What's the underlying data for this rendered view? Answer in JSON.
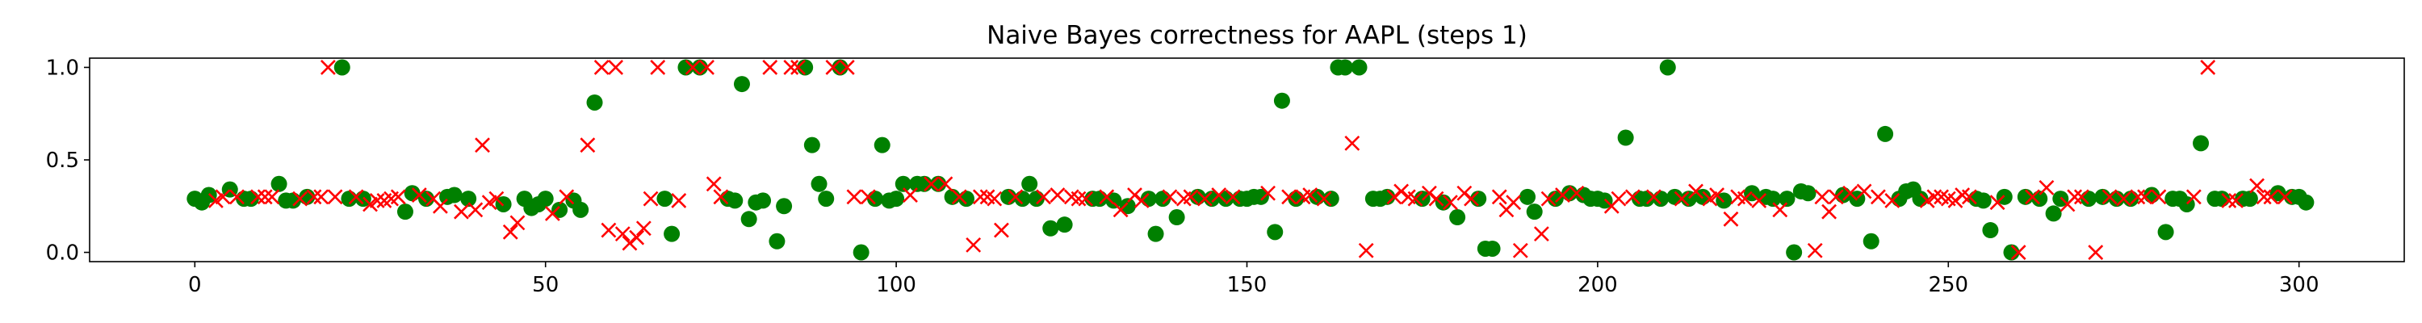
{
  "chart_data": {
    "type": "scatter",
    "title": "Naive Bayes correctness for AAPL (steps 1)",
    "xlabel": "",
    "ylabel": "",
    "xlim": [
      -15,
      315
    ],
    "ylim": [
      -0.05,
      1.05
    ],
    "xticks": [
      0,
      50,
      100,
      150,
      200,
      250,
      300
    ],
    "yticks": [
      0.0,
      0.5,
      1.0
    ],
    "ytick_labels": [
      "0.0",
      "0.5",
      "1.0"
    ],
    "grid": false,
    "legend": "none",
    "series": [
      {
        "marker": "circle",
        "color": "#008000",
        "points": [
          [
            0,
            0.29
          ],
          [
            1,
            0.27
          ],
          [
            2,
            0.31
          ],
          [
            5,
            0.34
          ],
          [
            7,
            0.29
          ],
          [
            8,
            0.29
          ],
          [
            12,
            0.37
          ],
          [
            13,
            0.28
          ],
          [
            14,
            0.28
          ],
          [
            16,
            0.3
          ],
          [
            21,
            1.0
          ],
          [
            22,
            0.29
          ],
          [
            24,
            0.29
          ],
          [
            30,
            0.22
          ],
          [
            31,
            0.32
          ],
          [
            33,
            0.29
          ],
          [
            36,
            0.3
          ],
          [
            37,
            0.31
          ],
          [
            39,
            0.29
          ],
          [
            44,
            0.26
          ],
          [
            47,
            0.29
          ],
          [
            48,
            0.24
          ],
          [
            49,
            0.26
          ],
          [
            50,
            0.29
          ],
          [
            52,
            0.23
          ],
          [
            54,
            0.28
          ],
          [
            55,
            0.23
          ],
          [
            57,
            0.81
          ],
          [
            67,
            0.29
          ],
          [
            68,
            0.1
          ],
          [
            70,
            1.0
          ],
          [
            72,
            1.0
          ],
          [
            76,
            0.29
          ],
          [
            77,
            0.28
          ],
          [
            78,
            0.91
          ],
          [
            79,
            0.18
          ],
          [
            80,
            0.27
          ],
          [
            81,
            0.28
          ],
          [
            83,
            0.06
          ],
          [
            84,
            0.25
          ],
          [
            87,
            1.0
          ],
          [
            88,
            0.58
          ],
          [
            89,
            0.37
          ],
          [
            90,
            0.29
          ],
          [
            92,
            1.0
          ],
          [
            95,
            0.0
          ],
          [
            97,
            0.29
          ],
          [
            98,
            0.58
          ],
          [
            99,
            0.28
          ],
          [
            100,
            0.29
          ],
          [
            101,
            0.37
          ],
          [
            103,
            0.37
          ],
          [
            104,
            0.37
          ],
          [
            106,
            0.37
          ],
          [
            108,
            0.3
          ],
          [
            110,
            0.29
          ],
          [
            116,
            0.3
          ],
          [
            118,
            0.29
          ],
          [
            119,
            0.37
          ],
          [
            120,
            0.29
          ],
          [
            122,
            0.13
          ],
          [
            124,
            0.15
          ],
          [
            128,
            0.29
          ],
          [
            129,
            0.29
          ],
          [
            131,
            0.28
          ],
          [
            133,
            0.25
          ],
          [
            136,
            0.29
          ],
          [
            137,
            0.1
          ],
          [
            138,
            0.29
          ],
          [
            140,
            0.19
          ],
          [
            143,
            0.3
          ],
          [
            145,
            0.29
          ],
          [
            147,
            0.29
          ],
          [
            149,
            0.29
          ],
          [
            150,
            0.29
          ],
          [
            151,
            0.3
          ],
          [
            152,
            0.3
          ],
          [
            154,
            0.11
          ],
          [
            155,
            0.82
          ],
          [
            157,
            0.29
          ],
          [
            160,
            0.3
          ],
          [
            162,
            0.29
          ],
          [
            163,
            1.0
          ],
          [
            164,
            1.0
          ],
          [
            166,
            1.0
          ],
          [
            168,
            0.29
          ],
          [
            169,
            0.29
          ],
          [
            170,
            0.3
          ],
          [
            175,
            0.29
          ],
          [
            178,
            0.27
          ],
          [
            180,
            0.19
          ],
          [
            183,
            0.29
          ],
          [
            184,
            0.02
          ],
          [
            185,
            0.02
          ],
          [
            190,
            0.3
          ],
          [
            191,
            0.22
          ],
          [
            194,
            0.29
          ],
          [
            196,
            0.32
          ],
          [
            198,
            0.31
          ],
          [
            199,
            0.29
          ],
          [
            200,
            0.29
          ],
          [
            201,
            0.28
          ],
          [
            204,
            0.62
          ],
          [
            206,
            0.29
          ],
          [
            207,
            0.29
          ],
          [
            209,
            0.29
          ],
          [
            210,
            1.0
          ],
          [
            211,
            0.3
          ],
          [
            213,
            0.29
          ],
          [
            215,
            0.3
          ],
          [
            218,
            0.28
          ],
          [
            222,
            0.32
          ],
          [
            224,
            0.3
          ],
          [
            225,
            0.29
          ],
          [
            227,
            0.29
          ],
          [
            228,
            0.0
          ],
          [
            229,
            0.33
          ],
          [
            230,
            0.32
          ],
          [
            235,
            0.31
          ],
          [
            237,
            0.29
          ],
          [
            239,
            0.06
          ],
          [
            241,
            0.64
          ],
          [
            243,
            0.29
          ],
          [
            244,
            0.33
          ],
          [
            245,
            0.34
          ],
          [
            246,
            0.29
          ],
          [
            254,
            0.29
          ],
          [
            255,
            0.28
          ],
          [
            256,
            0.12
          ],
          [
            258,
            0.3
          ],
          [
            259,
            0.0
          ],
          [
            261,
            0.3
          ],
          [
            263,
            0.29
          ],
          [
            265,
            0.21
          ],
          [
            266,
            0.29
          ],
          [
            270,
            0.29
          ],
          [
            272,
            0.3
          ],
          [
            274,
            0.29
          ],
          [
            276,
            0.29
          ],
          [
            279,
            0.31
          ],
          [
            281,
            0.11
          ],
          [
            282,
            0.29
          ],
          [
            283,
            0.29
          ],
          [
            284,
            0.26
          ],
          [
            286,
            0.59
          ],
          [
            288,
            0.29
          ],
          [
            289,
            0.29
          ],
          [
            292,
            0.29
          ],
          [
            293,
            0.29
          ],
          [
            297,
            0.32
          ],
          [
            299,
            0.3
          ],
          [
            300,
            0.3
          ],
          [
            301,
            0.27
          ]
        ]
      },
      {
        "marker": "x",
        "color": "#ff0000",
        "points": [
          [
            3,
            0.28
          ],
          [
            4,
            0.3
          ],
          [
            6,
            0.3
          ],
          [
            9,
            0.3
          ],
          [
            10,
            0.3
          ],
          [
            11,
            0.3
          ],
          [
            15,
            0.29
          ],
          [
            17,
            0.3
          ],
          [
            18,
            0.3
          ],
          [
            19,
            1.0
          ],
          [
            20,
            0.3
          ],
          [
            23,
            0.3
          ],
          [
            25,
            0.26
          ],
          [
            26,
            0.28
          ],
          [
            27,
            0.28
          ],
          [
            28,
            0.29
          ],
          [
            29,
            0.3
          ],
          [
            32,
            0.31
          ],
          [
            34,
            0.29
          ],
          [
            35,
            0.25
          ],
          [
            38,
            0.22
          ],
          [
            40,
            0.23
          ],
          [
            41,
            0.58
          ],
          [
            42,
            0.27
          ],
          [
            43,
            0.29
          ],
          [
            45,
            0.11
          ],
          [
            46,
            0.16
          ],
          [
            51,
            0.21
          ],
          [
            53,
            0.3
          ],
          [
            56,
            0.58
          ],
          [
            58,
            1.0
          ],
          [
            59,
            0.12
          ],
          [
            60,
            1.0
          ],
          [
            61,
            0.1
          ],
          [
            62,
            0.05
          ],
          [
            63,
            0.08
          ],
          [
            64,
            0.13
          ],
          [
            65,
            0.29
          ],
          [
            66,
            1.0
          ],
          [
            69,
            0.28
          ],
          [
            71,
            1.0
          ],
          [
            73,
            1.0
          ],
          [
            74,
            0.37
          ],
          [
            75,
            0.3
          ],
          [
            82,
            1.0
          ],
          [
            85,
            1.0
          ],
          [
            86,
            1.0
          ],
          [
            91,
            1.0
          ],
          [
            93,
            1.0
          ],
          [
            94,
            0.3
          ],
          [
            96,
            0.3
          ],
          [
            102,
            0.31
          ],
          [
            105,
            0.37
          ],
          [
            107,
            0.37
          ],
          [
            109,
            0.3
          ],
          [
            111,
            0.04
          ],
          [
            112,
            0.3
          ],
          [
            113,
            0.3
          ],
          [
            114,
            0.29
          ],
          [
            115,
            0.12
          ],
          [
            117,
            0.3
          ],
          [
            121,
            0.3
          ],
          [
            123,
            0.31
          ],
          [
            125,
            0.3
          ],
          [
            126,
            0.29
          ],
          [
            127,
            0.29
          ],
          [
            130,
            0.3
          ],
          [
            132,
            0.23
          ],
          [
            134,
            0.31
          ],
          [
            135,
            0.28
          ],
          [
            139,
            0.3
          ],
          [
            141,
            0.29
          ],
          [
            142,
            0.3
          ],
          [
            144,
            0.29
          ],
          [
            146,
            0.31
          ],
          [
            148,
            0.3
          ],
          [
            153,
            0.32
          ],
          [
            156,
            0.3
          ],
          [
            158,
            0.3
          ],
          [
            159,
            0.31
          ],
          [
            161,
            0.29
          ],
          [
            165,
            0.59
          ],
          [
            167,
            0.01
          ],
          [
            171,
            0.3
          ],
          [
            172,
            0.33
          ],
          [
            173,
            0.3
          ],
          [
            174,
            0.29
          ],
          [
            176,
            0.32
          ],
          [
            177,
            0.29
          ],
          [
            179,
            0.27
          ],
          [
            181,
            0.32
          ],
          [
            182,
            0.29
          ],
          [
            186,
            0.3
          ],
          [
            187,
            0.23
          ],
          [
            188,
            0.27
          ],
          [
            189,
            0.01
          ],
          [
            192,
            0.1
          ],
          [
            193,
            0.29
          ],
          [
            195,
            0.31
          ],
          [
            197,
            0.32
          ],
          [
            202,
            0.25
          ],
          [
            203,
            0.29
          ],
          [
            205,
            0.3
          ],
          [
            208,
            0.3
          ],
          [
            212,
            0.29
          ],
          [
            214,
            0.33
          ],
          [
            216,
            0.29
          ],
          [
            217,
            0.31
          ],
          [
            219,
            0.18
          ],
          [
            220,
            0.3
          ],
          [
            221,
            0.29
          ],
          [
            223,
            0.28
          ],
          [
            226,
            0.23
          ],
          [
            231,
            0.01
          ],
          [
            232,
            0.3
          ],
          [
            233,
            0.22
          ],
          [
            234,
            0.3
          ],
          [
            236,
            0.32
          ],
          [
            238,
            0.33
          ],
          [
            240,
            0.3
          ],
          [
            242,
            0.28
          ],
          [
            247,
            0.28
          ],
          [
            248,
            0.3
          ],
          [
            249,
            0.3
          ],
          [
            250,
            0.29
          ],
          [
            251,
            0.28
          ],
          [
            252,
            0.31
          ],
          [
            253,
            0.3
          ],
          [
            257,
            0.27
          ],
          [
            260,
            0.0
          ],
          [
            262,
            0.3
          ],
          [
            264,
            0.35
          ],
          [
            267,
            0.26
          ],
          [
            268,
            0.3
          ],
          [
            269,
            0.3
          ],
          [
            271,
            0.0
          ],
          [
            273,
            0.3
          ],
          [
            275,
            0.29
          ],
          [
            277,
            0.3
          ],
          [
            278,
            0.3
          ],
          [
            280,
            0.3
          ],
          [
            285,
            0.3
          ],
          [
            287,
            1.0
          ],
          [
            290,
            0.28
          ],
          [
            291,
            0.28
          ],
          [
            294,
            0.36
          ],
          [
            295,
            0.3
          ],
          [
            296,
            0.3
          ],
          [
            298,
            0.3
          ]
        ]
      }
    ]
  }
}
